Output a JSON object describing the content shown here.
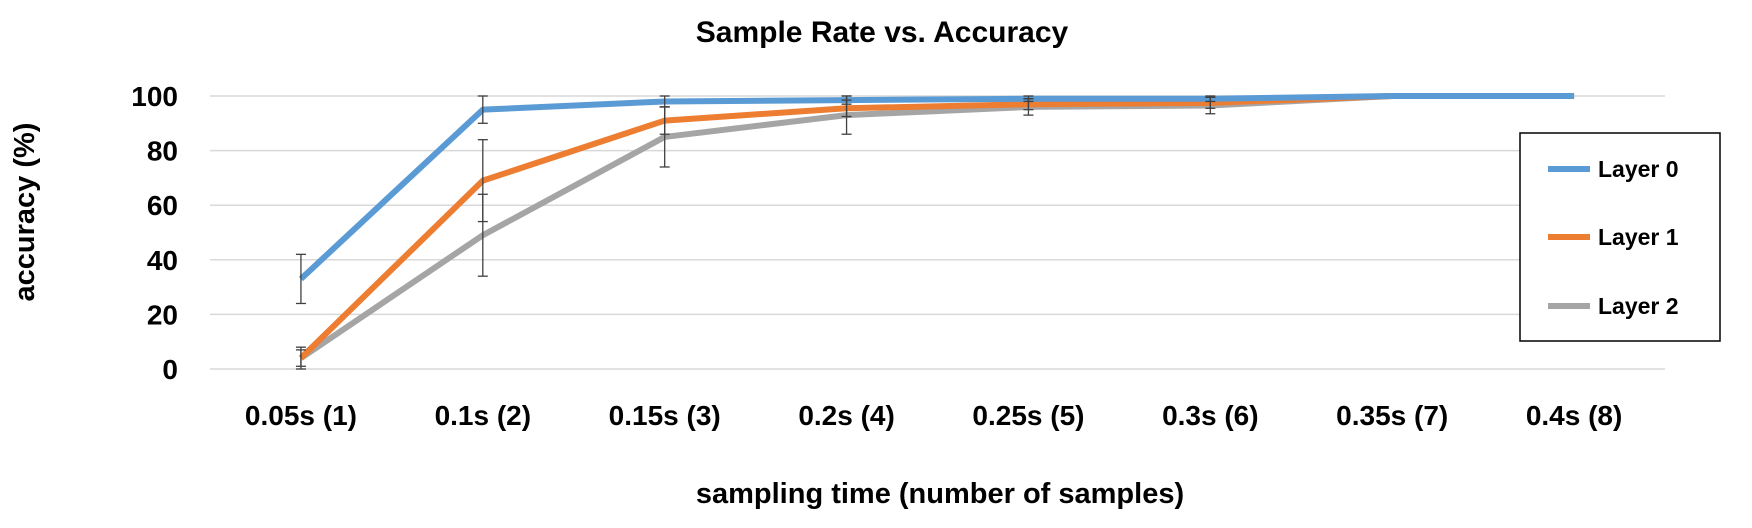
{
  "chart_data": {
    "type": "line",
    "title": "Sample Rate vs. Accuracy",
    "xlabel": "sampling time (number of samples)",
    "ylabel": "accuracy (%)",
    "categories": [
      "0.05s (1)",
      "0.1s (2)",
      "0.15s (3)",
      "0.2s (4)",
      "0.25s (5)",
      "0.3s (6)",
      "0.35s (7)",
      "0.4s (8)"
    ],
    "ylim": [
      0,
      100
    ],
    "yticks": [
      "0",
      "20",
      "40",
      "60",
      "80",
      "100"
    ],
    "grid": "horizontal",
    "legend_position": "right",
    "series": [
      {
        "name": "Layer 0",
        "color": "#5B9BD5",
        "values": [
          33,
          95,
          98,
          98.5,
          99,
          99,
          100,
          100
        ],
        "error": [
          9,
          5,
          2,
          1.5,
          1,
          1,
          0,
          0
        ]
      },
      {
        "name": "Layer 1",
        "color": "#ED7D31",
        "values": [
          4,
          69,
          91,
          95.5,
          97,
          97.5,
          100,
          100
        ],
        "error": [
          4,
          15,
          5,
          3,
          2,
          2,
          0,
          0
        ]
      },
      {
        "name": "Layer 2",
        "color": "#A5A5A5",
        "values": [
          4,
          49,
          85,
          93,
          96,
          96.5,
          100,
          100
        ],
        "error": [
          3,
          15,
          11,
          7,
          3,
          3,
          0,
          0
        ]
      }
    ]
  }
}
